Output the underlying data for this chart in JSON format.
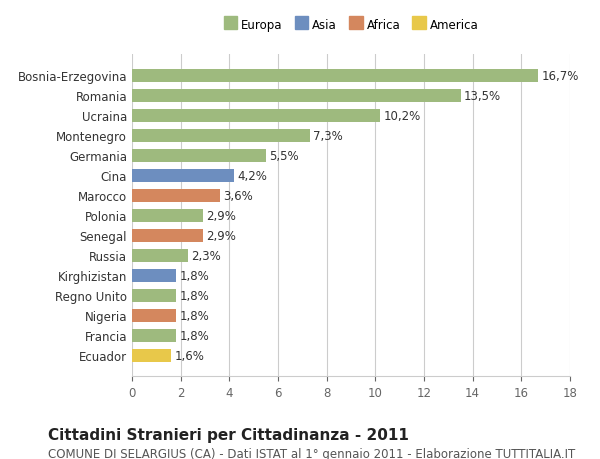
{
  "categories": [
    "Ecuador",
    "Francia",
    "Nigeria",
    "Regno Unito",
    "Kirghizistan",
    "Russia",
    "Senegal",
    "Polonia",
    "Marocco",
    "Cina",
    "Germania",
    "Montenegro",
    "Ucraina",
    "Romania",
    "Bosnia-Erzegovina"
  ],
  "values": [
    1.6,
    1.8,
    1.8,
    1.8,
    1.8,
    2.3,
    2.9,
    2.9,
    3.6,
    4.2,
    5.5,
    7.3,
    10.2,
    13.5,
    16.7
  ],
  "continent": [
    "America",
    "Europa",
    "Africa",
    "Europa",
    "Asia",
    "Europa",
    "Africa",
    "Europa",
    "Africa",
    "Asia",
    "Europa",
    "Europa",
    "Europa",
    "Europa",
    "Europa"
  ],
  "colors": {
    "Europa": "#9eba7e",
    "Asia": "#6d8ebf",
    "Africa": "#d4875e",
    "America": "#e8c84a"
  },
  "legend_order": [
    "Europa",
    "Asia",
    "Africa",
    "America"
  ],
  "title": "Cittadini Stranieri per Cittadinanza - 2011",
  "subtitle": "COMUNE DI SELARGIUS (CA) - Dati ISTAT al 1° gennaio 2011 - Elaborazione TUTTITALIA.IT",
  "xlim": [
    0,
    18
  ],
  "xticks": [
    0,
    2,
    4,
    6,
    8,
    10,
    12,
    14,
    16,
    18
  ],
  "background_color": "#ffffff",
  "grid_color": "#cccccc",
  "bar_height": 0.65,
  "title_fontsize": 11,
  "subtitle_fontsize": 8.5,
  "label_fontsize": 8.5,
  "tick_fontsize": 8.5,
  "value_fontsize": 8.5
}
